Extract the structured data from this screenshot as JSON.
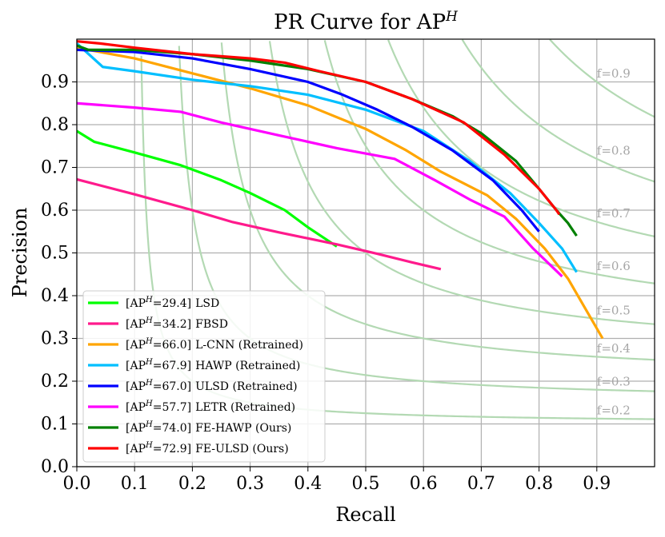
{
  "chart_data": {
    "type": "line",
    "title": "PR Curve for AP",
    "title_sup": "H",
    "xlabel": "Recall",
    "ylabel": "Precision",
    "xlim": [
      0,
      1.0
    ],
    "ylim": [
      0,
      1.0
    ],
    "xticks": [
      "0.0",
      "0.1",
      "0.2",
      "0.3",
      "0.4",
      "0.5",
      "0.6",
      "0.7",
      "0.8",
      "0.9"
    ],
    "yticks": [
      "0.0",
      "0.1",
      "0.2",
      "0.3",
      "0.4",
      "0.5",
      "0.6",
      "0.7",
      "0.8",
      "0.9"
    ],
    "grid": true,
    "legend_position": "lower-left",
    "iso_f_curves": [
      {
        "f": 0.2,
        "label": "f=0.2"
      },
      {
        "f": 0.3,
        "label": "f=0.3"
      },
      {
        "f": 0.4,
        "label": "f=0.4"
      },
      {
        "f": 0.5,
        "label": "f=0.5"
      },
      {
        "f": 0.6,
        "label": "f=0.6"
      },
      {
        "f": 0.7,
        "label": "f=0.7"
      },
      {
        "f": 0.8,
        "label": "f=0.8"
      },
      {
        "f": 0.9,
        "label": "f=0.9"
      }
    ],
    "iso_color": "#b3d9b3",
    "series": [
      {
        "name": "LSD",
        "prefix": "[AP",
        "sup": "H",
        "value": "=29.4]",
        "label": "LSD",
        "color": "#00ff00",
        "x": [
          0.0,
          0.03,
          0.1,
          0.18,
          0.25,
          0.3,
          0.36,
          0.4,
          0.45
        ],
        "y": [
          0.785,
          0.76,
          0.735,
          0.705,
          0.67,
          0.64,
          0.6,
          0.56,
          0.515
        ]
      },
      {
        "name": "FBSD",
        "prefix": "[AP",
        "sup": "H",
        "value": "=34.2]",
        "label": "FBSD",
        "color": "#ff1a8c",
        "x": [
          0.0,
          0.1,
          0.2,
          0.27,
          0.35,
          0.45,
          0.52,
          0.58,
          0.63
        ],
        "y": [
          0.672,
          0.637,
          0.6,
          0.572,
          0.548,
          0.52,
          0.498,
          0.478,
          0.462
        ]
      },
      {
        "name": "L-CNN (Retrained)",
        "prefix": "[AP",
        "sup": "H",
        "value": "=66.0]",
        "label": "L-CNN (Retrained)",
        "color": "#ffa500",
        "x": [
          0.0,
          0.1,
          0.2,
          0.3,
          0.4,
          0.5,
          0.57,
          0.63,
          0.71,
          0.76,
          0.81,
          0.85,
          0.88,
          0.91
        ],
        "y": [
          0.98,
          0.955,
          0.92,
          0.885,
          0.845,
          0.79,
          0.74,
          0.69,
          0.635,
          0.58,
          0.51,
          0.44,
          0.37,
          0.3
        ]
      },
      {
        "name": "HAWP (Retrained)",
        "prefix": "[AP",
        "sup": "H",
        "value": "=67.9]",
        "label": "HAWP (Retrained)",
        "color": "#00bfff",
        "x": [
          0.0,
          0.045,
          0.1,
          0.2,
          0.3,
          0.4,
          0.5,
          0.6,
          0.68,
          0.75,
          0.8,
          0.84,
          0.865
        ],
        "y": [
          0.99,
          0.935,
          0.925,
          0.905,
          0.89,
          0.87,
          0.835,
          0.785,
          0.715,
          0.64,
          0.57,
          0.51,
          0.455
        ]
      },
      {
        "name": "ULSD (Retrained)",
        "prefix": "[AP",
        "sup": "H",
        "value": "=67.0]",
        "label": "ULSD (Retrained)",
        "color": "#0000ff",
        "x": [
          0.0,
          0.1,
          0.2,
          0.3,
          0.4,
          0.46,
          0.52,
          0.58,
          0.65,
          0.72,
          0.77,
          0.8
        ],
        "y": [
          0.975,
          0.97,
          0.955,
          0.93,
          0.9,
          0.87,
          0.835,
          0.795,
          0.74,
          0.67,
          0.6,
          0.55
        ]
      },
      {
        "name": "LETR (Retrained)",
        "prefix": "[AP",
        "sup": "H",
        "value": "=57.7]",
        "label": "LETR (Retrained)",
        "color": "#ff00ff",
        "x": [
          0.0,
          0.1,
          0.18,
          0.25,
          0.35,
          0.45,
          0.55,
          0.62,
          0.68,
          0.74,
          0.79,
          0.84
        ],
        "y": [
          0.85,
          0.84,
          0.83,
          0.805,
          0.775,
          0.745,
          0.72,
          0.67,
          0.625,
          0.585,
          0.51,
          0.445
        ]
      },
      {
        "name": "FE-HAWP (Ours)",
        "prefix": "[AP",
        "sup": "H",
        "value": "=74.0]",
        "label": "FE-HAWP (Ours)",
        "color": "#008000",
        "x": [
          0.0,
          0.02,
          0.1,
          0.2,
          0.3,
          0.4,
          0.5,
          0.58,
          0.65,
          0.7,
          0.76,
          0.8,
          0.83,
          0.85,
          0.865
        ],
        "y": [
          0.985,
          0.975,
          0.975,
          0.965,
          0.95,
          0.93,
          0.9,
          0.86,
          0.82,
          0.78,
          0.715,
          0.65,
          0.6,
          0.57,
          0.54
        ]
      },
      {
        "name": "FE-ULSD (Ours)",
        "prefix": "[AP",
        "sup": "H",
        "value": "=72.9]",
        "label": "FE-ULSD (Ours)",
        "color": "#ff0000",
        "x": [
          0.0,
          0.04,
          0.1,
          0.2,
          0.3,
          0.36,
          0.42,
          0.5,
          0.58,
          0.67,
          0.74,
          0.8,
          0.83,
          0.835
        ],
        "y": [
          0.995,
          0.99,
          0.98,
          0.965,
          0.955,
          0.945,
          0.925,
          0.9,
          0.86,
          0.805,
          0.73,
          0.65,
          0.6,
          0.59
        ]
      }
    ]
  }
}
